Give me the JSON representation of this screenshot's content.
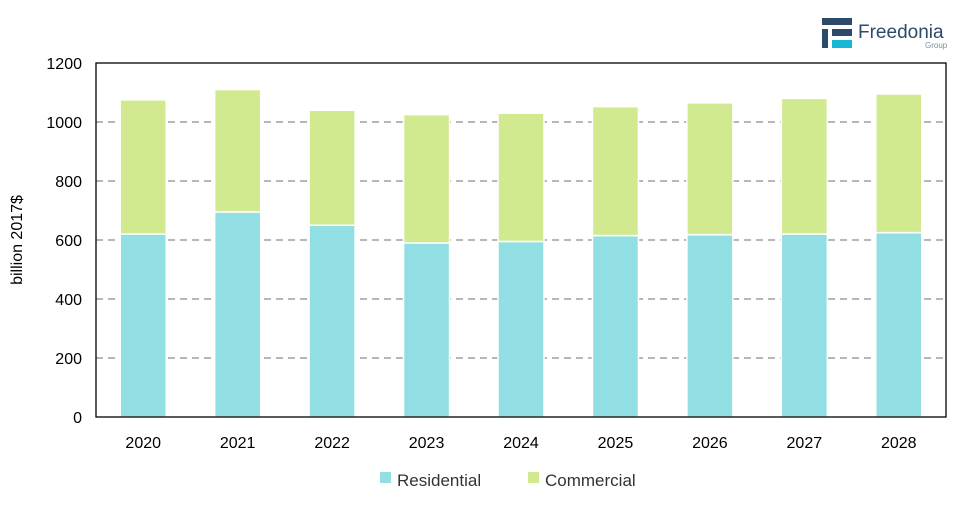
{
  "logo": {
    "word": "Freedonia",
    "sub": "Group"
  },
  "colors": {
    "residential": "#92dfe3",
    "commercial": "#d1ea8f",
    "grid": "#8c8c8c",
    "axis": "#000000"
  },
  "chart_data": {
    "type": "bar",
    "stacked": true,
    "categories": [
      "2020",
      "2021",
      "2022",
      "2023",
      "2024",
      "2025",
      "2026",
      "2027",
      "2028"
    ],
    "series": [
      {
        "name": "Residential",
        "values": [
          620,
          695,
          650,
          590,
          595,
          615,
          618,
          620,
          625
        ]
      },
      {
        "name": "Commercial",
        "values": [
          455,
          415,
          390,
          435,
          435,
          437,
          447,
          460,
          470
        ]
      }
    ],
    "ylabel": "billion 2017$",
    "ylim": [
      0,
      1200
    ],
    "yticks": [
      0,
      200,
      400,
      600,
      800,
      1000,
      1200
    ],
    "grid": "dashed horizontal",
    "legend": "bottom"
  }
}
